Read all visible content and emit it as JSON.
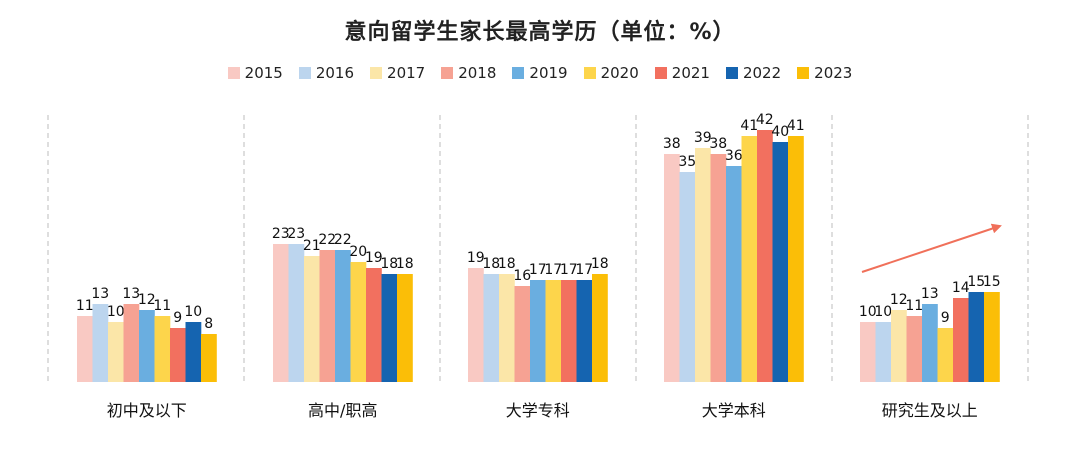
{
  "chart_data": {
    "type": "bar",
    "title": "意向留学生家长最高学历（单位：%）",
    "categories": [
      "初中及以下",
      "高中/职高",
      "大学专科",
      "大学本科",
      "研究生及以上"
    ],
    "series": [
      {
        "name": "2015",
        "color": "#F9C9C3",
        "values": [
          11,
          23,
          19,
          38,
          10
        ]
      },
      {
        "name": "2016",
        "color": "#BCD5EE",
        "values": [
          13,
          23,
          18,
          35,
          10
        ]
      },
      {
        "name": "2017",
        "color": "#FBE6A8",
        "values": [
          10,
          21,
          18,
          39,
          12
        ]
      },
      {
        "name": "2018",
        "color": "#F6A293",
        "values": [
          13,
          22,
          16,
          38,
          11
        ]
      },
      {
        "name": "2019",
        "color": "#6AAEE0",
        "values": [
          12,
          22,
          17,
          36,
          13
        ]
      },
      {
        "name": "2020",
        "color": "#FDD54B",
        "values": [
          11,
          20,
          17,
          41,
          9
        ]
      },
      {
        "name": "2021",
        "color": "#F2705F",
        "values": [
          9,
          19,
          17,
          42,
          14
        ]
      },
      {
        "name": "2022",
        "color": "#1564B0",
        "values": [
          10,
          18,
          17,
          40,
          15
        ]
      },
      {
        "name": "2023",
        "color": "#FBBE07",
        "values": [
          8,
          18,
          18,
          41,
          15
        ]
      }
    ],
    "ylim": [
      0,
      42
    ],
    "grid": false,
    "legend_position": "top",
    "annotation": "upward trend arrow over 研究生及以上"
  }
}
